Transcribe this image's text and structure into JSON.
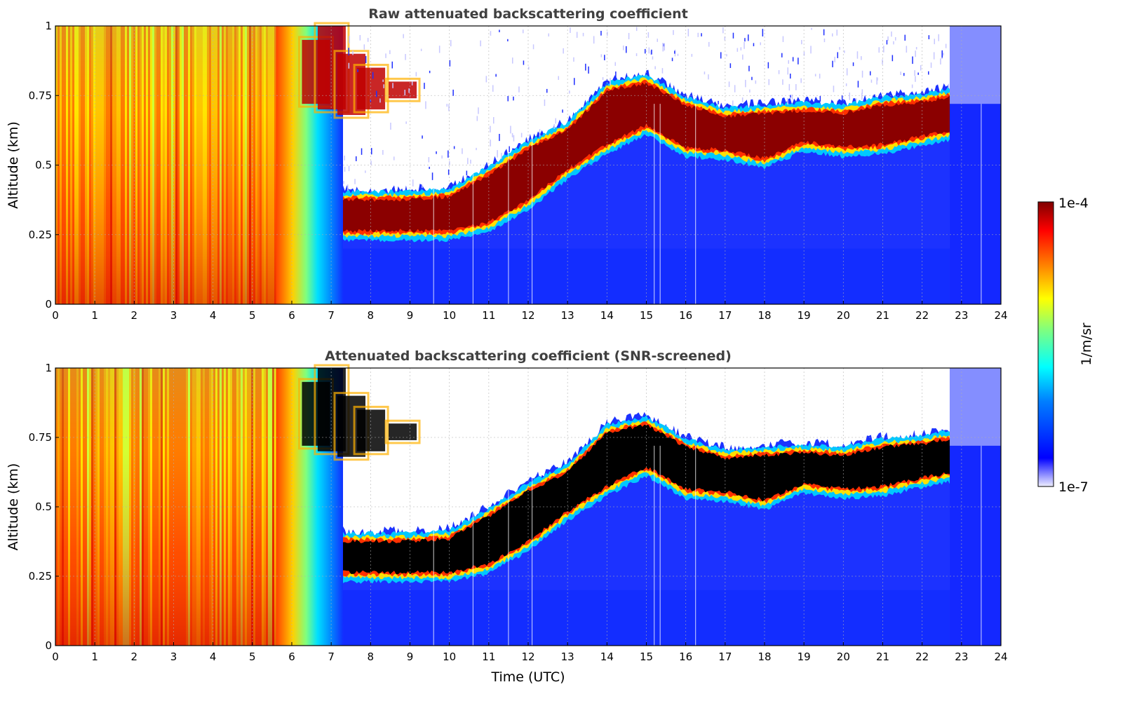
{
  "chart_data": [
    {
      "type": "heatmap",
      "title": "Raw attenuated backscattering coefficient",
      "xlabel": "",
      "ylabel": "Altitude (km)",
      "xlim": [
        0,
        24
      ],
      "ylim": [
        0,
        1
      ],
      "x_ticks": [
        "0",
        "1",
        "2",
        "3",
        "4",
        "5",
        "6",
        "7",
        "8",
        "9",
        "10",
        "11",
        "12",
        "13",
        "14",
        "15",
        "16",
        "17",
        "18",
        "19",
        "20",
        "21",
        "22",
        "23",
        "24"
      ],
      "y_ticks": [
        "0",
        "0.25",
        "0.5",
        "0.75",
        "1"
      ],
      "grid": true,
      "layers": {
        "time_utc": [
          0,
          2,
          4,
          6,
          7.3,
          8,
          9,
          10,
          11,
          12,
          13,
          14,
          15,
          16,
          17,
          18,
          19,
          20,
          21,
          22,
          22.7
        ],
        "cloud_base_km": [
          null,
          null,
          null,
          null,
          0.26,
          0.26,
          0.26,
          0.26,
          0.29,
          0.37,
          0.48,
          0.57,
          0.64,
          0.56,
          0.55,
          0.52,
          0.58,
          0.56,
          0.57,
          0.6,
          0.62
        ],
        "cloud_top_km": [
          null,
          null,
          null,
          null,
          0.38,
          0.38,
          0.38,
          0.39,
          0.47,
          0.56,
          0.63,
          0.77,
          0.8,
          0.72,
          0.68,
          0.69,
          0.7,
          0.69,
          0.72,
          0.73,
          0.75
        ],
        "strong_fog_until_utc": 5.6,
        "fog_dissipation_end_utc": 7.3,
        "data_end_utc": 22.7
      }
    },
    {
      "type": "heatmap",
      "title": "Attenuated backscattering coefficient (SNR-screened)",
      "xlabel": "Time (UTC)",
      "ylabel": "Altitude (km)",
      "xlim": [
        0,
        24
      ],
      "ylim": [
        0,
        1
      ],
      "x_ticks": [
        "0",
        "1",
        "2",
        "3",
        "4",
        "5",
        "6",
        "7",
        "8",
        "9",
        "10",
        "11",
        "12",
        "13",
        "14",
        "15",
        "16",
        "17",
        "18",
        "19",
        "20",
        "21",
        "22",
        "23",
        "24"
      ],
      "y_ticks": [
        "0",
        "0.25",
        "0.5",
        "0.75",
        "1"
      ],
      "grid": true,
      "saturated_color": "#000000",
      "layers": {
        "time_utc": [
          0,
          2,
          4,
          6,
          7.3,
          8,
          9,
          10,
          11,
          12,
          13,
          14,
          15,
          16,
          17,
          18,
          19,
          20,
          21,
          22,
          22.7
        ],
        "cloud_base_km": [
          null,
          null,
          null,
          null,
          0.26,
          0.26,
          0.26,
          0.26,
          0.29,
          0.37,
          0.48,
          0.57,
          0.64,
          0.56,
          0.55,
          0.52,
          0.58,
          0.56,
          0.57,
          0.6,
          0.62
        ],
        "cloud_top_km": [
          null,
          null,
          null,
          null,
          0.38,
          0.38,
          0.38,
          0.39,
          0.47,
          0.56,
          0.63,
          0.77,
          0.8,
          0.72,
          0.68,
          0.69,
          0.7,
          0.69,
          0.72,
          0.73,
          0.75
        ]
      }
    }
  ],
  "colorbar": {
    "label": "1/m/sr",
    "max_label": "1e-4",
    "min_label": "1e-7",
    "scale": "log",
    "colormap": "jet",
    "stops": [
      "#00007f",
      "#0000ff",
      "#007fff",
      "#00ffff",
      "#7fff7f",
      "#ffff00",
      "#ff7f00",
      "#ff0000",
      "#7f0000"
    ],
    "low_color": "#eeeeff"
  }
}
